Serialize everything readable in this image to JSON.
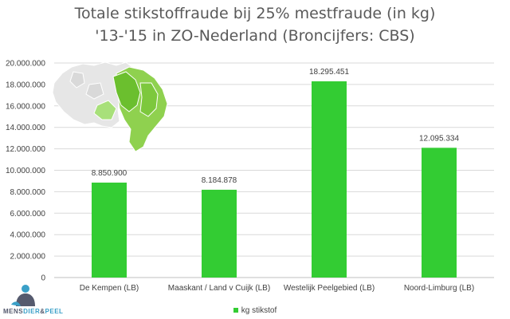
{
  "chart_data": {
    "type": "bar",
    "title": "Totale stikstoffraude bij 25% mestfraude (in kg)",
    "subtitle": "'13-'15 in ZO-Nederland (Broncijfers: CBS)",
    "categories": [
      "De Kempen (LB)",
      "Maaskant / Land v Cuijk (LB)",
      "Westelijk Peelgebied (LB)",
      "Noord-Limburg (LB)"
    ],
    "series": [
      {
        "name": "kg stikstof",
        "values": [
          8850900,
          8184878,
          18295451,
          12095334
        ],
        "color": "#33cc33"
      }
    ],
    "data_labels": [
      "8.850.900",
      "8.184.878",
      "18.295.451",
      "12.095.334"
    ],
    "y_ticks": [
      "0",
      "2.000.000",
      "4.000.000",
      "6.000.000",
      "8.000.000",
      "10.000.000",
      "12.000.000",
      "14.000.000",
      "16.000.000",
      "18.000.000",
      "20.000.000"
    ],
    "ylim": [
      0,
      20000000
    ],
    "xlabel": "",
    "ylabel": "",
    "grid": true,
    "legend_position": "bottom",
    "grid_color": "#d9d9d9",
    "axis_text_color": "#404040"
  },
  "logo": {
    "text_part1": "MENS",
    "text_part2": "DIER",
    "text_sep": "&",
    "text_part3": "PEEL",
    "color_dark": "#555a6e",
    "color_accent": "#3aa0c8"
  }
}
